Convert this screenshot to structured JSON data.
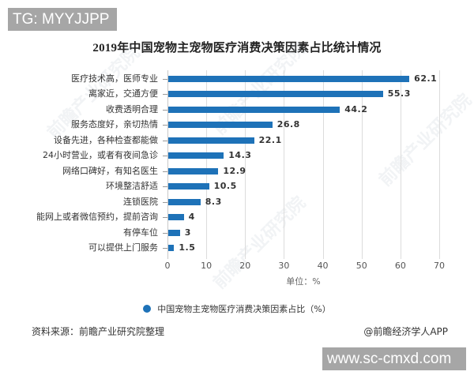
{
  "overlay": {
    "tg_label": "TG: MYYJJPP",
    "site_label": "www.sc-cmxd.com"
  },
  "watermarks": [
    "前瞻产业研究院",
    "前瞻产业研究院",
    "前瞻产业研究院",
    "前瞻产业研究院"
  ],
  "colors": {
    "bar": "#1e72b8",
    "grid": "#dcdcdc"
  },
  "chart_data": {
    "type": "bar",
    "orientation": "horizontal",
    "title": "2019年中国宠物主宠物医疗消费决策因素占比统计情况",
    "categories": [
      "医疗技术高，医师专业",
      "离家近，交通方便",
      "收费透明合理",
      "服务态度好，亲切热情",
      "设备先进，各种检查都能做",
      "24小时营业，或者有夜间急诊",
      "网络口碑好，有知名医生",
      "环境整洁舒适",
      "连锁医院",
      "能网上或者微信预约，提前咨询",
      "有停车位",
      "可以提供上门服务"
    ],
    "values": [
      62.1,
      55.3,
      44.2,
      26.8,
      22.1,
      14.3,
      12.9,
      10.5,
      8.3,
      4,
      3,
      1.5
    ],
    "value_labels": [
      "62.1",
      "55.3",
      "44.2",
      "26.8",
      "22.1",
      "14.3",
      "12.9",
      "10.5",
      "8.3",
      "4",
      "3",
      "1.5"
    ],
    "xlabel": "单位：%",
    "ylabel": "",
    "xlim": [
      0,
      70
    ],
    "xticks": [
      0,
      10,
      20,
      30,
      40,
      50,
      60,
      70
    ],
    "grid": true,
    "legend": {
      "position": "bottom",
      "entries": [
        "中国宠物主宠物医疗消费决策因素占比（%）"
      ]
    }
  },
  "footer": {
    "source": "资料来源：前瞻产业研究院整理",
    "credit": "@前瞻经济学人APP"
  }
}
